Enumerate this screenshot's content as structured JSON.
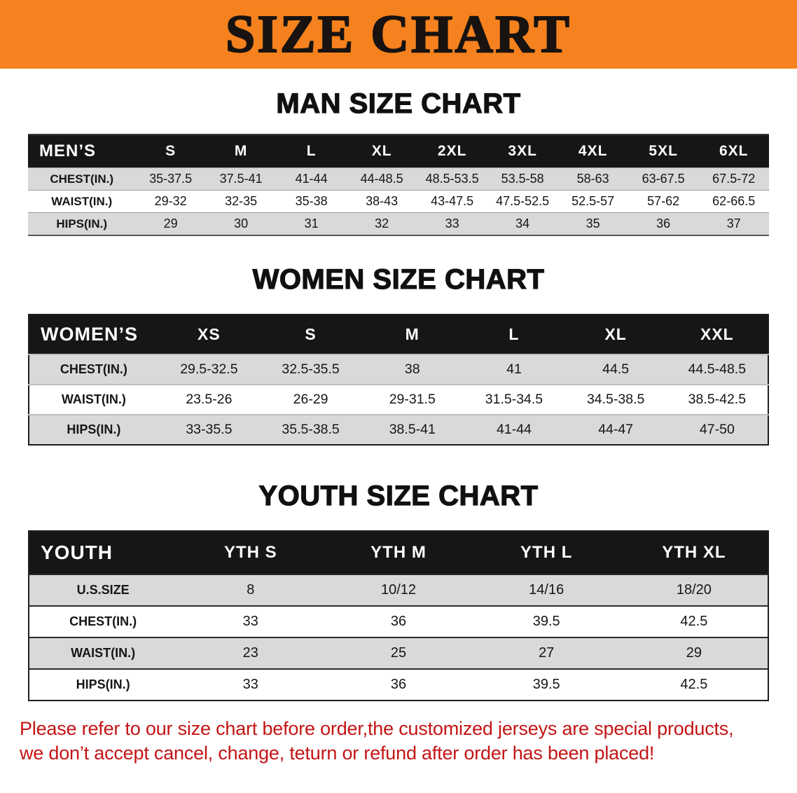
{
  "banner": {
    "title": "SIZE CHART"
  },
  "sections": [
    {
      "heading": "MAN SIZE CHART",
      "table": {
        "header": [
          "MEN’S",
          "S",
          "M",
          "L",
          "XL",
          "2XL",
          "3XL",
          "4XL",
          "5XL",
          "6XL"
        ],
        "rows": [
          [
            "CHEST(IN.)",
            "35-37.5",
            "37.5-41",
            "41-44",
            "44-48.5",
            "48.5-53.5",
            "53.5-58",
            "58-63",
            "63-67.5",
            "67.5-72"
          ],
          [
            "WAIST(IN.)",
            "29-32",
            "32-35",
            "35-38",
            "38-43",
            "43-47.5",
            "47.5-52.5",
            "52.5-57",
            "57-62",
            "62-66.5"
          ],
          [
            "HIPS(IN.)",
            "29",
            "30",
            "31",
            "32",
            "33",
            "34",
            "35",
            "36",
            "37"
          ]
        ]
      }
    },
    {
      "heading": "WOMEN SIZE CHART",
      "table": {
        "header": [
          "WOMEN’S",
          "XS",
          "S",
          "M",
          "L",
          "XL",
          "XXL"
        ],
        "rows": [
          [
            "CHEST(IN.)",
            "29.5-32.5",
            "32.5-35.5",
            "38",
            "41",
            "44.5",
            "44.5-48.5"
          ],
          [
            "WAIST(IN.)",
            "23.5-26",
            "26-29",
            "29-31.5",
            "31.5-34.5",
            "34.5-38.5",
            "38.5-42.5"
          ],
          [
            "HIPS(IN.)",
            "33-35.5",
            "35.5-38.5",
            "38.5-41",
            "41-44",
            "44-47",
            "47-50"
          ]
        ]
      }
    },
    {
      "heading": "YOUTH SIZE CHART",
      "table": {
        "header": [
          "YOUTH",
          "YTH S",
          "YTH M",
          "YTH L",
          "YTH XL"
        ],
        "rows": [
          [
            "U.S.SIZE",
            "8",
            "10/12",
            "14/16",
            "18/20"
          ],
          [
            "CHEST(IN.)",
            "33",
            "36",
            "39.5",
            "42.5"
          ],
          [
            "WAIST(IN.)",
            "23",
            "25",
            "27",
            "29"
          ],
          [
            "HIPS(IN.)",
            "33",
            "36",
            "39.5",
            "42.5"
          ]
        ]
      }
    }
  ],
  "notice": {
    "line1": "Please refer to our size chart before order,the customized jerseys are special products,",
    "line2": "we don’t accept cancel, change, teturn or refund after order has been placed!"
  },
  "colors": {
    "banner_orange": "#F5821F",
    "header_black": "#161616",
    "row_gray": "#D9D9D9",
    "notice_red": "#C41414"
  }
}
